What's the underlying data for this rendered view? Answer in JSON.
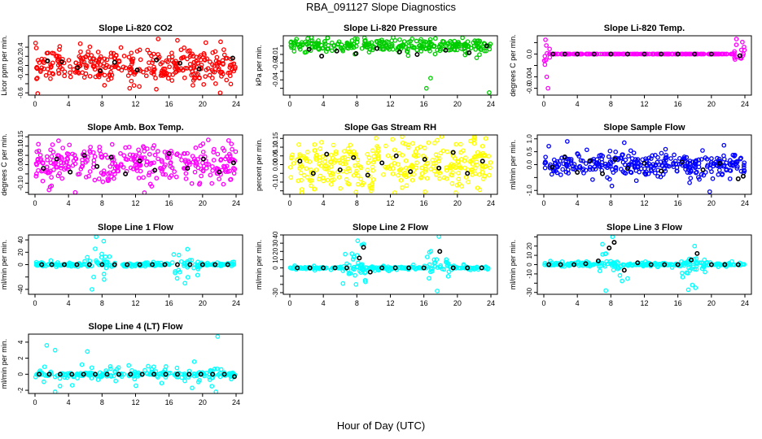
{
  "figure": {
    "title": "RBA_091127  Slope Diagnostics",
    "xlabel": "Hour of Day (UTC)"
  },
  "colors": {
    "black_series": "#000000"
  },
  "chart_data": [
    {
      "type": "scatter",
      "title": "Slope Li-820 CO2",
      "ylabel": "Licor ppm per min.",
      "xlim": [
        0,
        24
      ],
      "xticks": [
        0,
        4,
        8,
        12,
        16,
        20,
        24
      ],
      "ylim": [
        -0.65,
        0.65
      ],
      "yticks": [
        -0.6,
        -0.4,
        -0.2,
        0.0,
        0.2,
        0.4
      ],
      "ytick_labels": [
        "-0.6",
        "",
        "-0.2",
        "0.0",
        "0.2",
        "0.4"
      ],
      "color": "#ff0000",
      "spread": 0.18,
      "n": 340,
      "outliers": [
        [
          14.7,
          0.58
        ],
        [
          17.0,
          0.55
        ],
        [
          22.1,
          -0.6
        ],
        [
          11.3,
          -0.5
        ]
      ],
      "black_points": [
        [
          1.5,
          0.1
        ],
        [
          3.2,
          0.08
        ],
        [
          5.1,
          -0.05
        ],
        [
          7.8,
          -0.12
        ],
        [
          9.5,
          0.07
        ],
        [
          12.2,
          -0.1
        ],
        [
          14.5,
          0.12
        ],
        [
          17.3,
          0.05
        ],
        [
          19.6,
          -0.08
        ],
        [
          23.6,
          0.16
        ]
      ]
    },
    {
      "type": "scatter",
      "title": "Slope Li-820 Pressure",
      "ylabel": "kPa per min.",
      "xlim": [
        0,
        24
      ],
      "xticks": [
        0,
        4,
        8,
        12,
        16,
        20,
        24
      ],
      "ylim": [
        -0.058,
        0.012
      ],
      "yticks": [
        -0.05,
        -0.04,
        -0.03,
        -0.02,
        -0.01,
        0.0
      ],
      "ytick_labels": [
        "",
        "-0.04",
        "",
        "-0.02",
        "-0.01",
        ""
      ],
      "color": "#00cc00",
      "center": 0.0,
      "spread": 0.004,
      "n": 300,
      "outliers": [
        [
          16.3,
          -0.05
        ],
        [
          23.8,
          -0.055
        ],
        [
          0.8,
          0.008
        ],
        [
          2.5,
          0.006
        ],
        [
          16.8,
          -0.038
        ],
        [
          22.3,
          -0.014
        ]
      ],
      "black_points": [
        [
          2.3,
          -0.004
        ],
        [
          3.8,
          -0.012
        ],
        [
          5.6,
          -0.006
        ],
        [
          7.9,
          -0.009
        ],
        [
          10.4,
          -0.003
        ],
        [
          13.1,
          -0.007
        ],
        [
          15.2,
          -0.01
        ],
        [
          18.6,
          -0.005
        ],
        [
          21.4,
          -0.008
        ],
        [
          23.5,
          0.0
        ]
      ]
    },
    {
      "type": "scatter",
      "title": "Slope Li-820 Temp.",
      "ylabel": "degrees C per min.",
      "xlim": [
        0,
        24
      ],
      "xticks": [
        0,
        4,
        8,
        12,
        16,
        20,
        24
      ],
      "ylim": [
        -0.0072,
        0.0032
      ],
      "yticks": [
        -0.006,
        -0.004,
        -0.002,
        0.0,
        0.002
      ],
      "ytick_labels": [
        "-0.0",
        "-0.004",
        "",
        "0.0",
        ""
      ],
      "color": "#ff00ff",
      "pattern": "flat_with_edges",
      "n": 230,
      "outliers": [
        [
          0.2,
          0.0025
        ],
        [
          0.35,
          -0.004
        ],
        [
          0.5,
          -0.006
        ],
        [
          0.3,
          0.0015
        ]
      ],
      "black_points": [
        [
          1.1,
          0.0
        ],
        [
          2.5,
          0.0
        ],
        [
          4.0,
          0.0
        ],
        [
          6.0,
          0.0
        ],
        [
          8.0,
          0.0
        ],
        [
          10.0,
          0.0
        ],
        [
          12.0,
          0.0
        ],
        [
          14.0,
          0.0
        ],
        [
          16.0,
          0.0
        ],
        [
          18.0,
          0.0
        ],
        [
          20.0,
          0.0
        ],
        [
          23.4,
          -0.0003
        ]
      ]
    },
    {
      "type": "scatter",
      "title": "Slope Amb. Box Temp.",
      "ylabel": "degrees C per min.",
      "xlim": [
        0,
        24
      ],
      "xticks": [
        0,
        4,
        8,
        12,
        16,
        20,
        24
      ],
      "ylim": [
        -0.16,
        0.16
      ],
      "yticks": [
        -0.15,
        -0.1,
        -0.05,
        0.0,
        0.05,
        0.1,
        0.15
      ],
      "ytick_labels": [
        "",
        "-0.10",
        "",
        "0.00",
        "0.05",
        "0.10",
        "0.15"
      ],
      "color": "#ff00ff",
      "spread": 0.055,
      "n": 320,
      "outliers": [
        [
          0.4,
          0.11
        ],
        [
          4.8,
          -0.15
        ],
        [
          1.8,
          -0.12
        ],
        [
          23.1,
          0.13
        ]
      ],
      "black_points": [
        [
          1.0,
          -0.02
        ],
        [
          2.6,
          0.03
        ],
        [
          4.2,
          -0.04
        ],
        [
          5.9,
          0.05
        ],
        [
          7.4,
          -0.01
        ],
        [
          9.1,
          0.04
        ],
        [
          10.8,
          -0.05
        ],
        [
          12.5,
          0.02
        ],
        [
          14.3,
          -0.03
        ],
        [
          16.0,
          0.06
        ],
        [
          18.2,
          -0.02
        ],
        [
          20.1,
          0.03
        ],
        [
          22.0,
          -0.04
        ],
        [
          23.7,
          0.01
        ]
      ]
    },
    {
      "type": "scatter",
      "title": "Slope Gas Stream RH",
      "ylabel": "percent per min.",
      "xlim": [
        0,
        24
      ],
      "xticks": [
        0,
        4,
        8,
        12,
        16,
        20,
        24
      ],
      "ylim": [
        -0.17,
        0.17
      ],
      "yticks": [
        -0.15,
        -0.1,
        -0.05,
        0.0,
        0.05,
        0.1,
        0.15
      ],
      "ytick_labels": [
        "",
        "-0.10",
        "",
        "0.00",
        "0.05",
        "0.10",
        "0.15"
      ],
      "color": "#ffff00",
      "spread": 0.07,
      "n": 330,
      "outliers": [
        [
          13.4,
          0.16
        ],
        [
          2.9,
          -0.14
        ],
        [
          9.7,
          -0.15
        ],
        [
          17.6,
          0.14
        ]
      ],
      "black_points": [
        [
          1.2,
          0.02
        ],
        [
          2.8,
          -0.05
        ],
        [
          4.4,
          0.06
        ],
        [
          6.0,
          -0.03
        ],
        [
          7.6,
          0.04
        ],
        [
          9.3,
          -0.06
        ],
        [
          11.0,
          0.01
        ],
        [
          12.7,
          0.05
        ],
        [
          14.4,
          -0.04
        ],
        [
          16.1,
          0.03
        ],
        [
          17.8,
          -0.02
        ],
        [
          19.5,
          0.07
        ],
        [
          21.2,
          -0.05
        ],
        [
          23.0,
          0.02
        ]
      ]
    },
    {
      "type": "scatter",
      "title": "Slope Sample Flow",
      "ylabel": "ml/min per min.",
      "xlim": [
        0,
        24
      ],
      "xticks": [
        0,
        4,
        8,
        12,
        16,
        20,
        24
      ],
      "ylim": [
        -1.15,
        1.15
      ],
      "yticks": [
        -1.0,
        -0.5,
        0.0,
        0.5,
        1.0
      ],
      "ytick_labels": [
        "-1.0",
        "",
        "0.0",
        "0.5",
        "1.0"
      ],
      "color": "#0000ff",
      "spread": 0.22,
      "n": 320,
      "outliers": [
        [
          2.8,
          0.9
        ],
        [
          19.8,
          -1.05
        ],
        [
          9.6,
          0.85
        ],
        [
          17.4,
          -0.7
        ],
        [
          21.5,
          0.75
        ]
      ],
      "black_points": [
        [
          1.0,
          -0.1
        ],
        [
          2.5,
          0.3
        ],
        [
          4.0,
          -0.3
        ],
        [
          5.5,
          0.15
        ],
        [
          7.0,
          -0.35
        ],
        [
          8.5,
          0.2
        ],
        [
          10.0,
          -0.15
        ],
        [
          12.0,
          0.05
        ],
        [
          14.0,
          -0.25
        ],
        [
          16.5,
          0.1
        ],
        [
          19.0,
          -0.2
        ],
        [
          21.0,
          0.05
        ],
        [
          23.2,
          -0.55
        ],
        [
          23.8,
          -0.45
        ]
      ]
    },
    {
      "type": "scatter",
      "title": "Slope Line 1 Flow",
      "ylabel": "ml/min per min.",
      "xlim": [
        0,
        24
      ],
      "xticks": [
        0,
        4,
        8,
        12,
        16,
        20,
        24
      ],
      "ylim": [
        -48,
        48
      ],
      "yticks": [
        -40,
        -20,
        0,
        20,
        40
      ],
      "ytick_labels": [
        "-40",
        "",
        "0",
        "20",
        "40"
      ],
      "color": "#00ffff",
      "pattern": "spiky",
      "n": 260,
      "outliers": [
        [
          7.3,
          45
        ],
        [
          6.8,
          -40
        ],
        [
          18.2,
          25
        ],
        [
          17.9,
          -30
        ],
        [
          8.2,
          38
        ],
        [
          7.0,
          -20
        ]
      ],
      "black_points": [
        [
          0.8,
          0
        ],
        [
          2.0,
          0
        ],
        [
          3.5,
          0
        ],
        [
          5.0,
          0
        ],
        [
          6.5,
          0
        ],
        [
          8.0,
          0
        ],
        [
          9.5,
          0
        ],
        [
          11.0,
          0
        ],
        [
          12.5,
          0
        ],
        [
          14.0,
          0
        ],
        [
          15.5,
          0
        ],
        [
          17.0,
          0
        ],
        [
          18.5,
          0
        ],
        [
          20.0,
          0
        ],
        [
          21.5,
          0
        ],
        [
          23.0,
          0
        ]
      ]
    },
    {
      "type": "scatter",
      "title": "Slope Line 2 Flow",
      "ylabel": "ml/min per min.",
      "xlim": [
        0,
        24
      ],
      "xticks": [
        0,
        4,
        8,
        12,
        16,
        20,
        24
      ],
      "ylim": [
        -32,
        40
      ],
      "yticks": [
        -30,
        -20,
        -10,
        0,
        10,
        20,
        30,
        40
      ],
      "ytick_labels": [
        "-30",
        "",
        "",
        "0",
        "10",
        "20",
        "30",
        "40"
      ],
      "color": "#00ffff",
      "pattern": "spiky",
      "n": 260,
      "outliers": [
        [
          8.1,
          33
        ],
        [
          17.8,
          38
        ],
        [
          17.6,
          -28
        ],
        [
          7.9,
          -20
        ],
        [
          8.6,
          28
        ],
        [
          9.0,
          -15
        ]
      ],
      "black_points": [
        [
          0.9,
          0
        ],
        [
          2.4,
          0
        ],
        [
          4.0,
          0
        ],
        [
          5.4,
          0
        ],
        [
          6.8,
          0
        ],
        [
          8.3,
          12
        ],
        [
          8.8,
          25
        ],
        [
          9.6,
          -5
        ],
        [
          11.0,
          0
        ],
        [
          12.6,
          0
        ],
        [
          14.2,
          0
        ],
        [
          16.0,
          0
        ],
        [
          17.9,
          20
        ],
        [
          19.5,
          0
        ],
        [
          21.2,
          0
        ],
        [
          22.9,
          0
        ]
      ]
    },
    {
      "type": "scatter",
      "title": "Slope Line 3 Flow",
      "ylabel": "ml/min per min.",
      "xlim": [
        0,
        24
      ],
      "xticks": [
        0,
        4,
        8,
        12,
        16,
        20,
        24
      ],
      "ylim": [
        -32,
        32
      ],
      "yticks": [
        -30,
        -20,
        -10,
        0,
        10,
        20,
        30
      ],
      "ytick_labels": [
        "-30",
        "",
        "-10",
        "0",
        "10",
        "20",
        ""
      ],
      "color": "#00ffff",
      "pattern": "spiky",
      "n": 260,
      "outliers": [
        [
          7.4,
          -28
        ],
        [
          8.2,
          30
        ],
        [
          18.1,
          -25
        ],
        [
          7.0,
          22
        ],
        [
          18.0,
          20
        ],
        [
          10.0,
          -15
        ]
      ],
      "black_points": [
        [
          0.6,
          0
        ],
        [
          2.0,
          0
        ],
        [
          3.6,
          0
        ],
        [
          5.0,
          1
        ],
        [
          6.5,
          4
        ],
        [
          7.8,
          18
        ],
        [
          8.4,
          24
        ],
        [
          9.6,
          -6
        ],
        [
          11.2,
          2
        ],
        [
          12.8,
          0
        ],
        [
          14.4,
          0
        ],
        [
          16.0,
          0
        ],
        [
          17.6,
          5
        ],
        [
          18.3,
          12
        ],
        [
          20.0,
          0
        ],
        [
          21.6,
          0
        ],
        [
          23.2,
          0
        ]
      ]
    },
    {
      "type": "scatter",
      "title": "Slope Line 4 (LT) Flow",
      "ylabel": "ml/min per min.",
      "xlim": [
        0,
        24
      ],
      "xticks": [
        0,
        4,
        8,
        12,
        16,
        20,
        24
      ],
      "ylim": [
        -2.4,
        5.0
      ],
      "yticks": [
        -2,
        0,
        2,
        4
      ],
      "ytick_labels": [
        "-2",
        "0",
        "2",
        "4"
      ],
      "color": "#00ffff",
      "pattern": "spiky_small",
      "n": 230,
      "outliers": [
        [
          1.4,
          3.6
        ],
        [
          2.4,
          3.0
        ],
        [
          21.8,
          4.7
        ],
        [
          2.4,
          -2.4
        ],
        [
          21.6,
          -2.2
        ],
        [
          5.6,
          1.2
        ],
        [
          13.5,
          1.0
        ]
      ],
      "black_points": [
        [
          0.5,
          0
        ],
        [
          1.7,
          0
        ],
        [
          3.0,
          0
        ],
        [
          4.4,
          0
        ],
        [
          5.8,
          0
        ],
        [
          7.2,
          0
        ],
        [
          8.6,
          0
        ],
        [
          10.0,
          0
        ],
        [
          11.4,
          0
        ],
        [
          12.8,
          0
        ],
        [
          14.2,
          0
        ],
        [
          15.6,
          0
        ],
        [
          17.0,
          0
        ],
        [
          18.4,
          0
        ],
        [
          19.8,
          0
        ],
        [
          21.2,
          0
        ],
        [
          22.6,
          0
        ],
        [
          23.8,
          -0.3
        ]
      ]
    }
  ]
}
